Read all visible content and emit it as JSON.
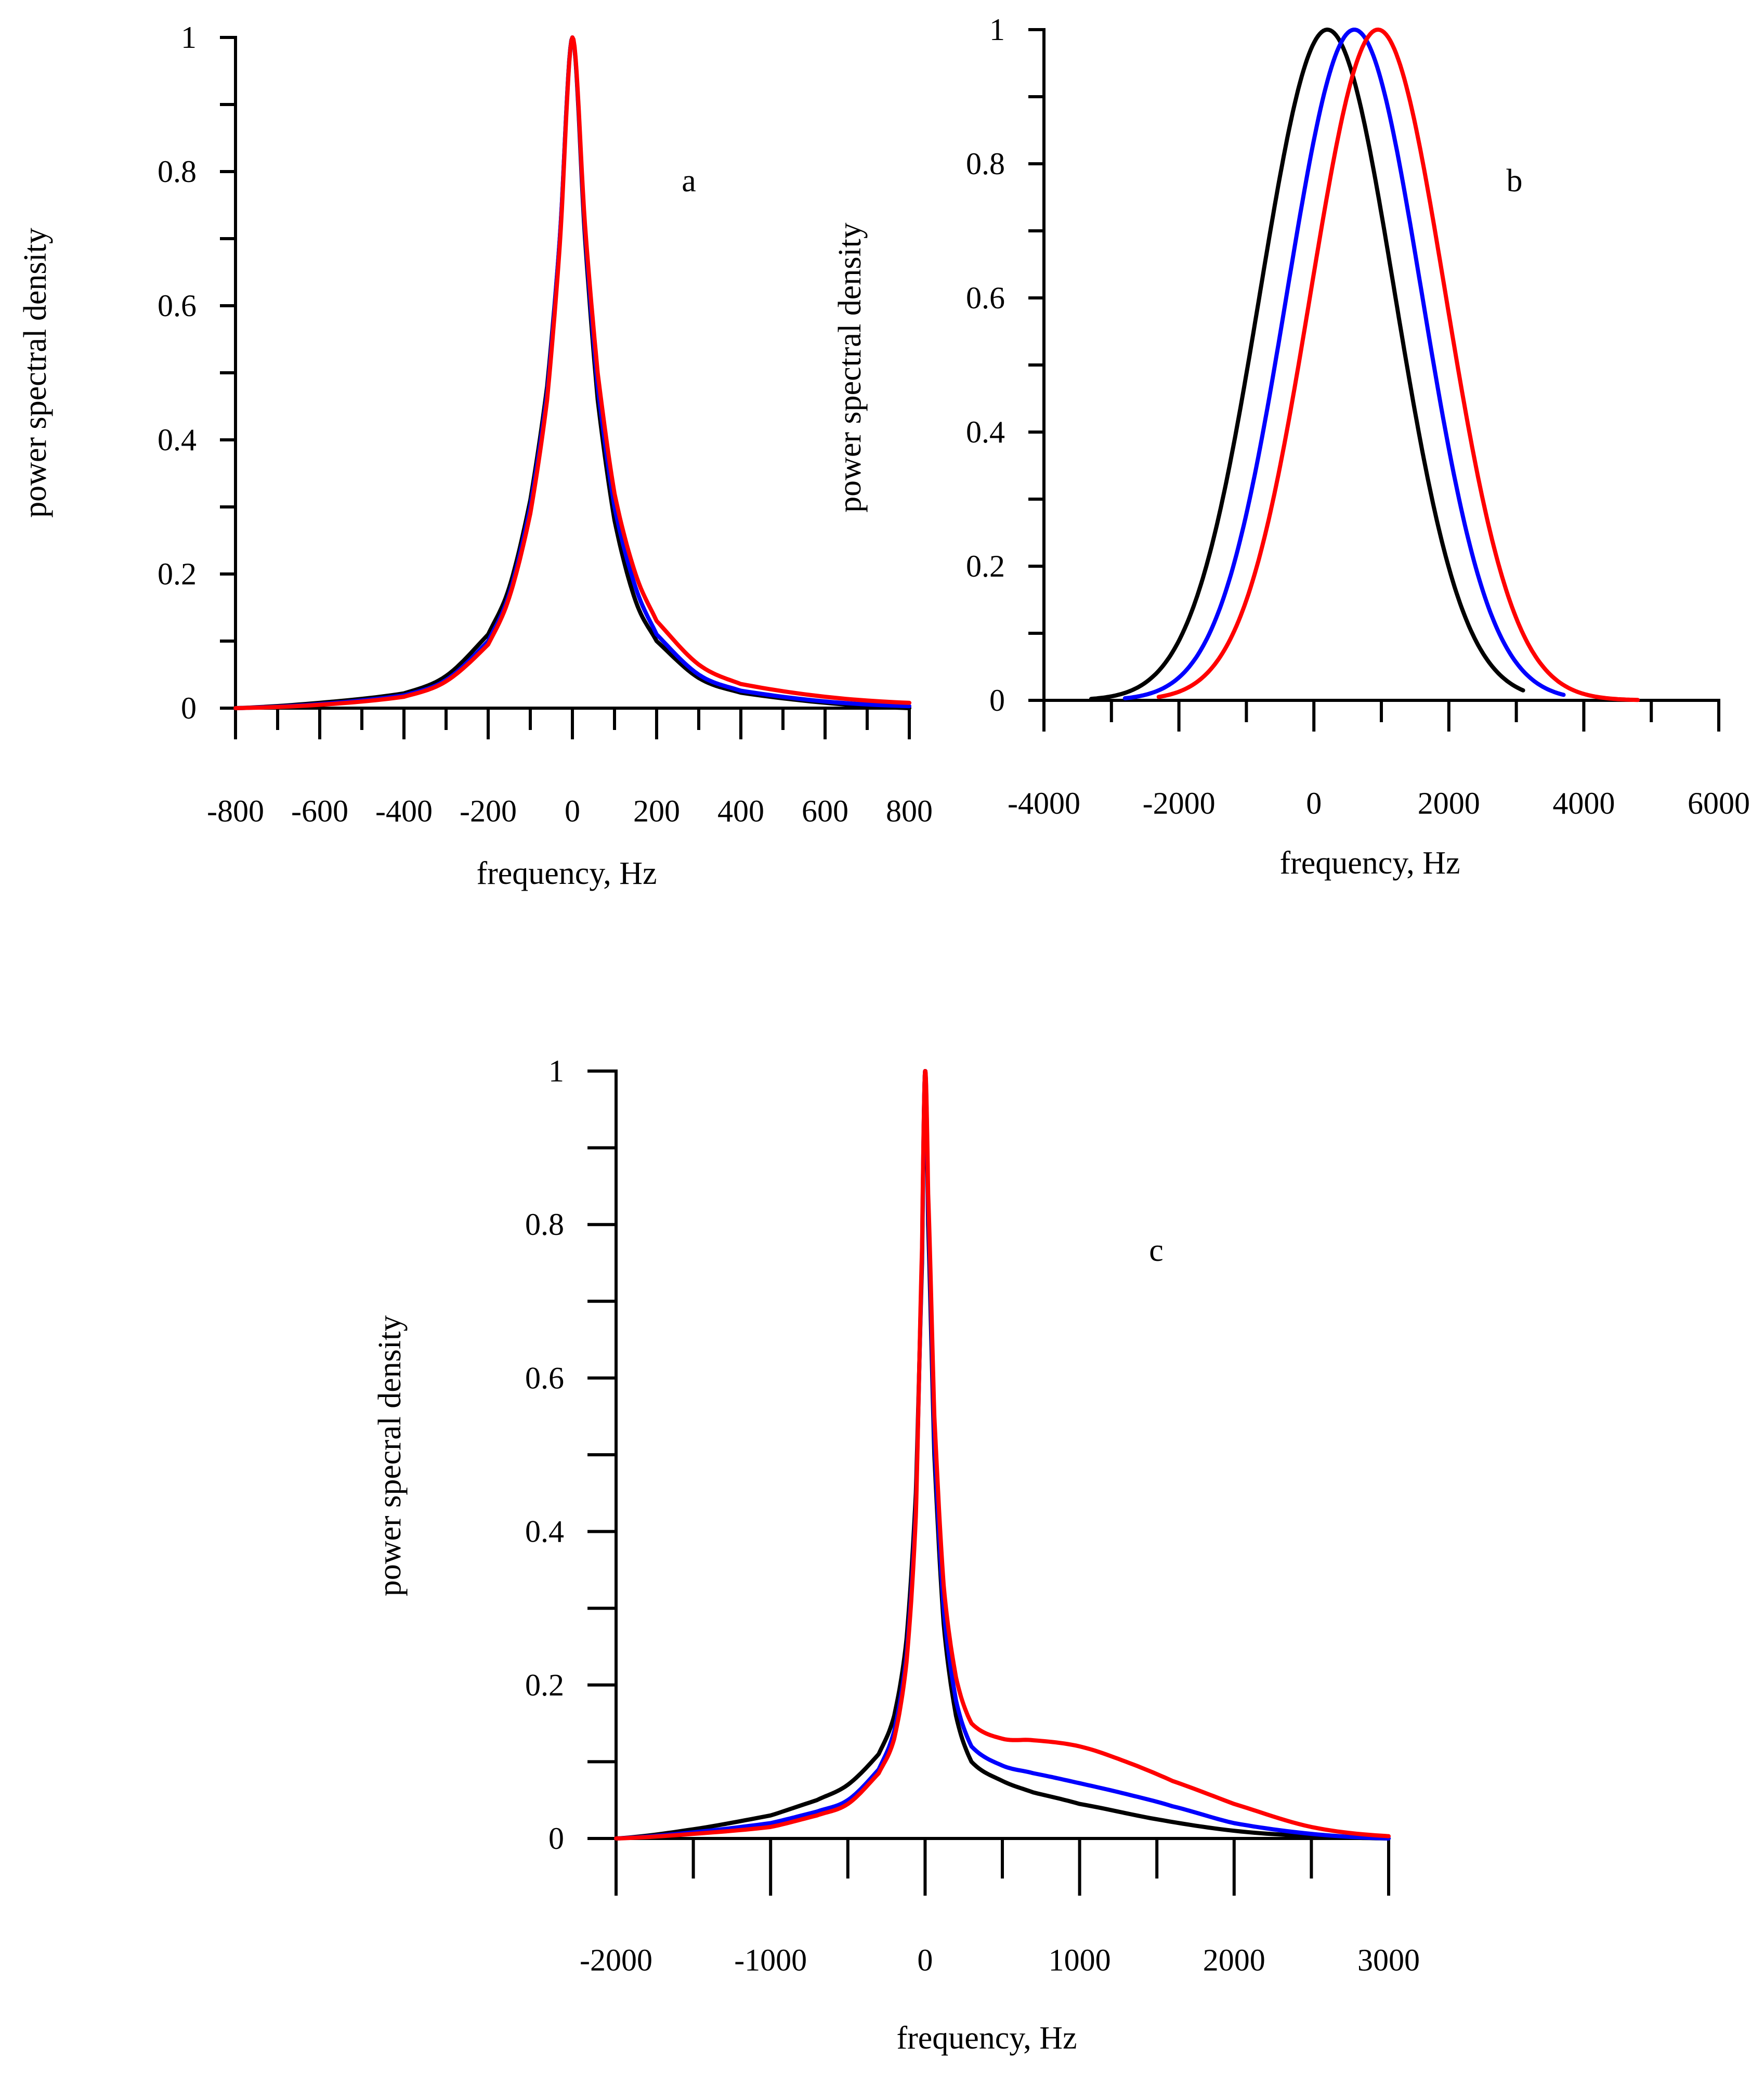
{
  "chart_data": [
    {
      "id": "a",
      "type": "line",
      "title": "",
      "annotation": "a",
      "xlabel": "frequency, Hz",
      "ylabel": "power spectral density",
      "xlim": [
        -800,
        800
      ],
      "ylim": [
        0,
        1
      ],
      "xticks": [
        -800,
        -600,
        -400,
        -200,
        0,
        200,
        400,
        600,
        800
      ],
      "xtick_labels": [
        "-800",
        "-600",
        "-400",
        "-200",
        "0",
        "200",
        "400",
        "600",
        "800"
      ],
      "yticks": [
        0,
        0.2,
        0.4,
        0.6,
        0.8,
        1
      ],
      "ytick_labels": [
        "0",
        "0.2",
        "0.4",
        "0.6",
        "0.8",
        "1"
      ],
      "series": [
        {
          "name": "black",
          "color": "#000000",
          "x": [
            -800,
            -600,
            -400,
            -300,
            -200,
            -150,
            -100,
            -60,
            -30,
            0,
            30,
            60,
            100,
            150,
            200,
            300,
            400,
            600,
            800
          ],
          "y": [
            0.0,
            0.008,
            0.022,
            0.048,
            0.11,
            0.18,
            0.31,
            0.48,
            0.7,
            1.0,
            0.7,
            0.46,
            0.28,
            0.16,
            0.1,
            0.045,
            0.023,
            0.008,
            0.0
          ]
        },
        {
          "name": "blue",
          "color": "#0000ff",
          "x": [
            -800,
            -600,
            -400,
            -300,
            -200,
            -150,
            -100,
            -60,
            -30,
            0,
            30,
            60,
            100,
            150,
            200,
            300,
            400,
            600,
            800
          ],
          "y": [
            0.0,
            0.006,
            0.019,
            0.042,
            0.1,
            0.17,
            0.3,
            0.47,
            0.7,
            1.0,
            0.71,
            0.48,
            0.3,
            0.18,
            0.11,
            0.05,
            0.026,
            0.01,
            0.003
          ]
        },
        {
          "name": "red",
          "color": "#ff0000",
          "x": [
            -800,
            -600,
            -400,
            -300,
            -200,
            -150,
            -100,
            -60,
            -30,
            0,
            30,
            60,
            100,
            150,
            200,
            300,
            400,
            600,
            800
          ],
          "y": [
            0.0,
            0.005,
            0.017,
            0.04,
            0.095,
            0.165,
            0.29,
            0.46,
            0.69,
            1.0,
            0.72,
            0.5,
            0.32,
            0.2,
            0.13,
            0.065,
            0.036,
            0.017,
            0.008
          ]
        }
      ]
    },
    {
      "id": "b",
      "type": "line",
      "title": "",
      "annotation": "b",
      "xlabel": "frequency, Hz",
      "ylabel": "power spectral density",
      "xlim": [
        -4000,
        6000
      ],
      "ylim": [
        0,
        1
      ],
      "xticks": [
        -4000,
        -2000,
        0,
        2000,
        4000,
        6000
      ],
      "xtick_labels": [
        "-4000",
        "-2000",
        "0",
        "2000",
        "4000",
        "6000"
      ],
      "yticks": [
        0,
        0.2,
        0.4,
        0.6,
        0.8,
        1
      ],
      "ytick_labels": [
        "0",
        "0.2",
        "0.4",
        "0.6",
        "0.8",
        "1"
      ],
      "series": [
        {
          "name": "black",
          "color": "#000000",
          "x_range": [
            -3300,
            3100
          ],
          "gaussian": {
            "center": 200,
            "sigma": 1000
          }
        },
        {
          "name": "blue",
          "color": "#0000ff",
          "x_range": [
            -2800,
            3700
          ],
          "gaussian": {
            "center": 600,
            "sigma": 1000
          }
        },
        {
          "name": "red",
          "color": "#ff0000",
          "x_range": [
            -2300,
            4800
          ],
          "gaussian": {
            "center": 950,
            "sigma": 1000
          }
        }
      ]
    },
    {
      "id": "c",
      "type": "line",
      "title": "",
      "annotation": "c",
      "xlabel": "frequency, Hz",
      "ylabel": "power specral density",
      "xlim": [
        -2000,
        3000
      ],
      "ylim": [
        0,
        1
      ],
      "xticks": [
        -2000,
        -1000,
        0,
        1000,
        2000,
        3000
      ],
      "xtick_labels": [
        "-2000",
        "-1000",
        "0",
        "1000",
        "2000",
        "3000"
      ],
      "yticks": [
        0,
        0.2,
        0.4,
        0.6,
        0.8,
        1
      ],
      "ytick_labels": [
        "0",
        "0.2",
        "0.4",
        "0.6",
        "0.8",
        "1"
      ],
      "series": [
        {
          "name": "black",
          "color": "#000000",
          "x": [
            -2000,
            -1500,
            -1000,
            -700,
            -500,
            -300,
            -200,
            -120,
            -60,
            -20,
            0,
            20,
            60,
            120,
            200,
            300,
            500,
            700,
            1000,
            1500,
            2000,
            2500,
            3000
          ],
          "y": [
            0.0,
            0.012,
            0.03,
            0.05,
            0.07,
            0.11,
            0.16,
            0.26,
            0.45,
            0.75,
            1.0,
            0.8,
            0.5,
            0.28,
            0.16,
            0.1,
            0.075,
            0.06,
            0.045,
            0.025,
            0.01,
            0.003,
            0.0
          ]
        },
        {
          "name": "blue",
          "color": "#0000ff",
          "x": [
            -2000,
            -1500,
            -1000,
            -700,
            -500,
            -300,
            -200,
            -120,
            -60,
            -20,
            0,
            20,
            60,
            120,
            200,
            300,
            500,
            700,
            1000,
            1300,
            1600,
            2000,
            2500,
            3000
          ],
          "y": [
            0.0,
            0.008,
            0.02,
            0.035,
            0.05,
            0.09,
            0.14,
            0.24,
            0.43,
            0.76,
            1.0,
            0.82,
            0.52,
            0.3,
            0.18,
            0.12,
            0.095,
            0.085,
            0.072,
            0.058,
            0.042,
            0.02,
            0.006,
            0.0
          ]
        },
        {
          "name": "red",
          "color": "#ff0000",
          "x": [
            -2000,
            -1500,
            -1000,
            -700,
            -500,
            -300,
            -200,
            -120,
            -60,
            -20,
            0,
            20,
            60,
            120,
            200,
            300,
            500,
            700,
            1000,
            1300,
            1600,
            2000,
            2500,
            3000
          ],
          "y": [
            0.0,
            0.006,
            0.015,
            0.03,
            0.045,
            0.085,
            0.13,
            0.23,
            0.42,
            0.77,
            1.0,
            0.84,
            0.55,
            0.33,
            0.21,
            0.15,
            0.13,
            0.128,
            0.12,
            0.1,
            0.075,
            0.045,
            0.015,
            0.003
          ]
        }
      ]
    }
  ]
}
